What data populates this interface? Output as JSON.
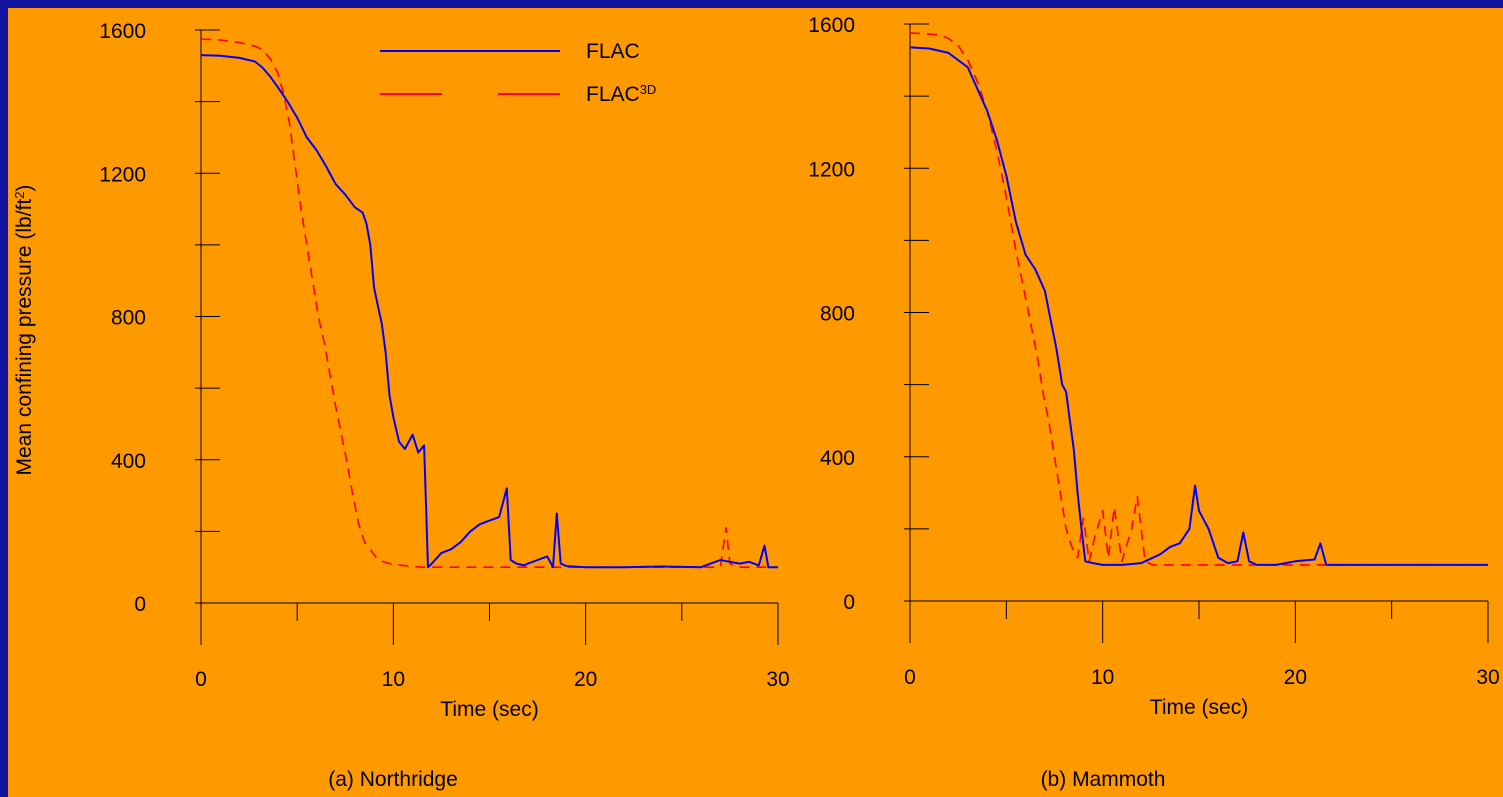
{
  "colors": {
    "frame": "#1414a0",
    "background": "#ff9900",
    "flac": "#0000ff",
    "flac3d": "#ff0000",
    "axis": "#000000"
  },
  "legend": {
    "flac": "FLAC",
    "flac3d_base": "FLAC",
    "flac3d_sup": "3D"
  },
  "ylabel_text": "Mean confining pressure (lb/ft",
  "ylabel_sup": "2",
  "ylabel_close": ")",
  "chart_data": [
    {
      "type": "line",
      "title": "(a) Northridge",
      "xlabel": "Time (sec)",
      "ylabel": "Mean confining pressure (lb/ft2)",
      "xlim": [
        0,
        30
      ],
      "ylim": [
        0,
        1600
      ],
      "xticks": [
        0,
        10,
        20,
        30
      ],
      "yticks": [
        0,
        400,
        800,
        1200,
        1600
      ],
      "legend_position": "top-center",
      "series": [
        {
          "name": "FLAC",
          "style": "solid",
          "x": [
            0,
            1,
            2,
            2.8,
            3.2,
            3.6,
            4,
            4.5,
            5,
            5.5,
            6,
            6.5,
            7,
            7.5,
            8,
            8.4,
            8.6,
            8.8,
            9,
            9.2,
            9.4,
            9.6,
            9.8,
            10,
            10.3,
            10.6,
            11,
            11.3,
            11.6,
            11.8,
            12,
            12.5,
            13,
            13.5,
            14,
            14.5,
            15,
            15.5,
            15.9,
            16.1,
            16.4,
            16.8,
            17,
            17.5,
            18,
            18.3,
            18.5,
            18.7,
            19,
            20,
            22,
            24,
            26,
            26.5,
            27,
            27.5,
            28,
            28.5,
            29,
            29.3,
            29.5,
            30
          ],
          "y": [
            1530,
            1528,
            1522,
            1512,
            1495,
            1470,
            1440,
            1400,
            1355,
            1300,
            1265,
            1220,
            1170,
            1140,
            1105,
            1090,
            1060,
            1000,
            880,
            830,
            780,
            700,
            580,
            520,
            450,
            430,
            470,
            420,
            440,
            100,
            110,
            140,
            150,
            170,
            200,
            220,
            230,
            240,
            320,
            120,
            110,
            105,
            110,
            120,
            130,
            100,
            250,
            110,
            103,
            100,
            100,
            102,
            100,
            110,
            120,
            115,
            110,
            115,
            105,
            160,
            100,
            100
          ]
        },
        {
          "name": "FLAC3D",
          "style": "dashed",
          "x": [
            0,
            1,
            2,
            2.8,
            3.2,
            3.6,
            4,
            4.3,
            4.6,
            4.9,
            5.2,
            5.5,
            5.8,
            6.1,
            6.4,
            6.7,
            7,
            7.3,
            7.6,
            7.9,
            8.2,
            8.5,
            8.8,
            9.2,
            9.8,
            10.5,
            11.5,
            13,
            15,
            17,
            20,
            25,
            27,
            27.3,
            27.5,
            28,
            29,
            30
          ],
          "y": [
            1575,
            1572,
            1565,
            1555,
            1545,
            1520,
            1480,
            1420,
            1340,
            1220,
            1100,
            1000,
            900,
            800,
            730,
            640,
            550,
            470,
            390,
            300,
            220,
            170,
            150,
            120,
            110,
            105,
            100,
            100,
            100,
            100,
            100,
            100,
            100,
            210,
            110,
            100,
            100,
            100
          ]
        }
      ]
    },
    {
      "type": "line",
      "title": "(b) Mammoth",
      "xlabel": "Time (sec)",
      "ylabel": "",
      "xlim": [
        0,
        30
      ],
      "ylim": [
        0,
        1600
      ],
      "xticks": [
        0,
        10,
        20,
        30
      ],
      "yticks": [
        0,
        400,
        800,
        1200,
        1600
      ],
      "series": [
        {
          "name": "FLAC",
          "style": "solid",
          "x": [
            0,
            1,
            2,
            3,
            3.5,
            4,
            4.5,
            5,
            5.5,
            6,
            6.5,
            7,
            7.3,
            7.6,
            7.9,
            8.1,
            8.3,
            8.5,
            8.7,
            8.9,
            9.1,
            9.5,
            10,
            11,
            12,
            13,
            13.5,
            14,
            14.5,
            14.8,
            15,
            15.5,
            16,
            16.5,
            17,
            17.3,
            17.6,
            18,
            19,
            20,
            21,
            21.3,
            21.6,
            22,
            25,
            30
          ],
          "y": [
            1535,
            1532,
            1520,
            1480,
            1420,
            1360,
            1280,
            1180,
            1050,
            960,
            920,
            860,
            780,
            700,
            600,
            580,
            500,
            420,
            300,
            200,
            110,
            105,
            100,
            100,
            105,
            130,
            150,
            160,
            200,
            320,
            250,
            200,
            120,
            105,
            110,
            190,
            110,
            100,
            100,
            110,
            115,
            160,
            100,
            100,
            100,
            100
          ]
        },
        {
          "name": "FLAC3D",
          "style": "dashed",
          "x": [
            0,
            0.5,
            1,
            1.5,
            2,
            2.5,
            3,
            3.5,
            4,
            4.5,
            5,
            5.5,
            6,
            6.3,
            6.6,
            6.9,
            7.2,
            7.5,
            7.8,
            8.1,
            8.4,
            8.7,
            9,
            9.3,
            9.6,
            10,
            10.3,
            10.6,
            11,
            11.5,
            11.8,
            12.2,
            12.6,
            13,
            14,
            16,
            20,
            25,
            30
          ],
          "y": [
            1575,
            1574,
            1572,
            1570,
            1560,
            1540,
            1500,
            1440,
            1360,
            1250,
            1120,
            970,
            840,
            760,
            680,
            580,
            500,
            400,
            300,
            200,
            150,
            120,
            230,
            110,
            180,
            250,
            120,
            260,
            110,
            200,
            290,
            110,
            100,
            100,
            100,
            100,
            100,
            100,
            100
          ]
        }
      ]
    }
  ]
}
